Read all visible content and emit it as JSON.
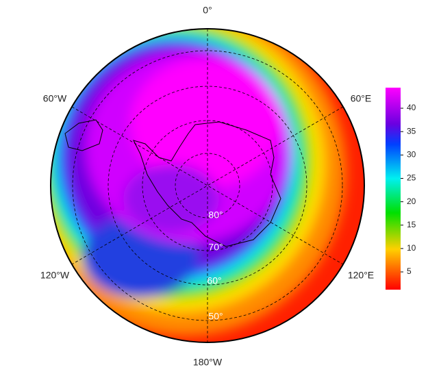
{
  "map": {
    "longitude_labels": [
      "0°",
      "60°W",
      "60°E",
      "120°W",
      "120°E",
      "180°W"
    ],
    "latitude_labels": [
      "80°",
      "70°",
      "60°",
      "50°"
    ]
  },
  "colorbar": {
    "lim": [
      1.2,
      44.4
    ],
    "ticks": [
      5,
      10,
      15,
      20,
      25,
      30,
      35,
      40
    ]
  }
}
